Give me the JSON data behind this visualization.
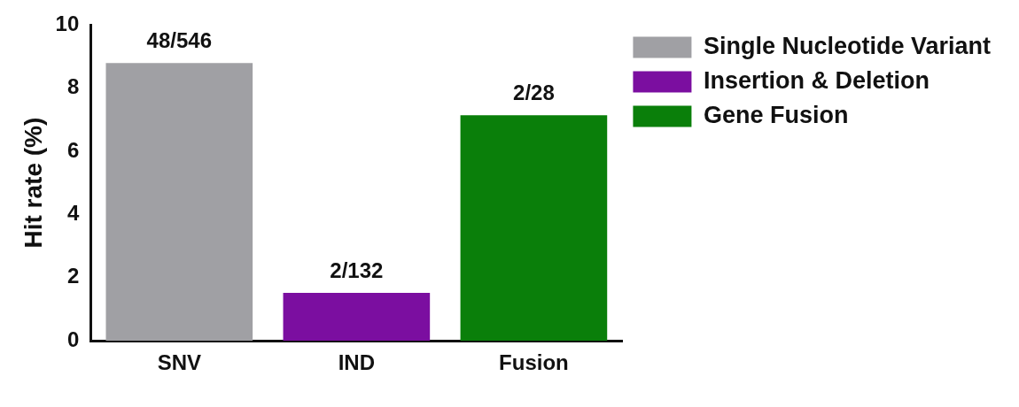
{
  "chart_data": {
    "type": "bar",
    "ylabel": "Hit rate (%)",
    "categories": [
      "SNV",
      "IND",
      "Fusion"
    ],
    "ylim": [
      0,
      10
    ],
    "yticks": [
      0,
      2,
      4,
      6,
      8,
      10
    ],
    "grid": false,
    "legend": "top right",
    "series": [
      {
        "name": "Single Nucleotide Variant",
        "color": "#a0a0a4",
        "values": [
          8.79,
          null,
          null
        ],
        "value_labels": [
          "48/546",
          null,
          null
        ]
      },
      {
        "name": "Insertion & Deletion",
        "color": "#7b0ea0",
        "values": [
          null,
          1.52,
          null
        ],
        "value_labels": [
          null,
          "2/132",
          null
        ]
      },
      {
        "name": "Gene Fusion",
        "color": "#0a7f0a",
        "values": [
          null,
          null,
          7.14
        ],
        "value_labels": [
          null,
          null,
          "2/28"
        ]
      }
    ]
  }
}
